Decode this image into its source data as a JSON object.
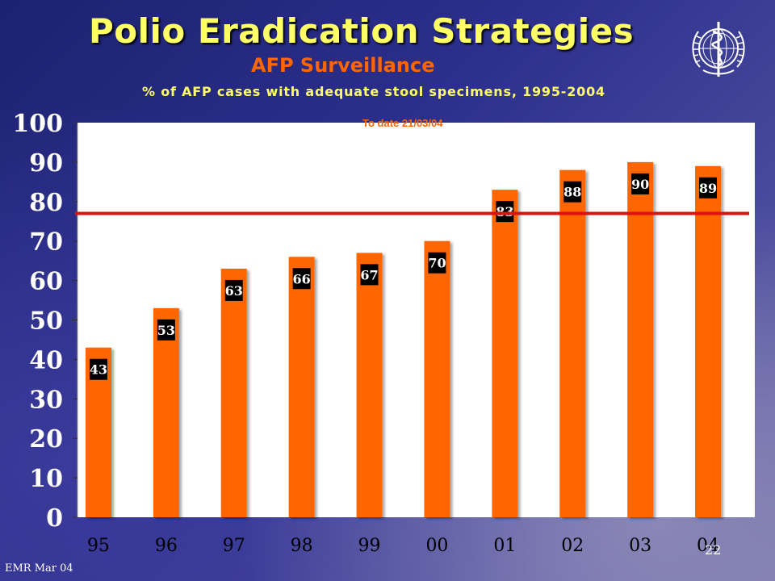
{
  "slide": {
    "title": "Polio Eradication Strategies",
    "subtitle": "AFP Surveillance",
    "footer": "EMR Mar 04",
    "page_number": "22"
  },
  "colors": {
    "bar": "#ff6600",
    "target_line": "#dd1111",
    "title": "#ffff66",
    "subtitle": "#ff6600",
    "plot_background": "#ffffff"
  },
  "logo": {
    "icon": "who-emblem-icon"
  },
  "chart_data": {
    "type": "bar",
    "title": "% of AFP cases with  adequate stool specimens, 1995-2004",
    "annotation": "To date 21/03/04",
    "categories": [
      "95",
      "96",
      "97",
      "98",
      "99",
      "00",
      "01",
      "02",
      "03",
      "04"
    ],
    "values": [
      43,
      53,
      63,
      66,
      67,
      70,
      83,
      88,
      90,
      89
    ],
    "data_labels": [
      "43",
      "53",
      "63",
      "66",
      "67",
      "70",
      "83",
      "88",
      "90",
      "89"
    ],
    "reference_line": {
      "value": 77
    },
    "ylim": [
      0,
      100
    ],
    "yticks": [
      "0",
      "10",
      "20",
      "30",
      "40",
      "50",
      "60",
      "70",
      "80",
      "90",
      "100"
    ],
    "xlabel": "",
    "ylabel": "",
    "grid": false,
    "legend": "none"
  }
}
